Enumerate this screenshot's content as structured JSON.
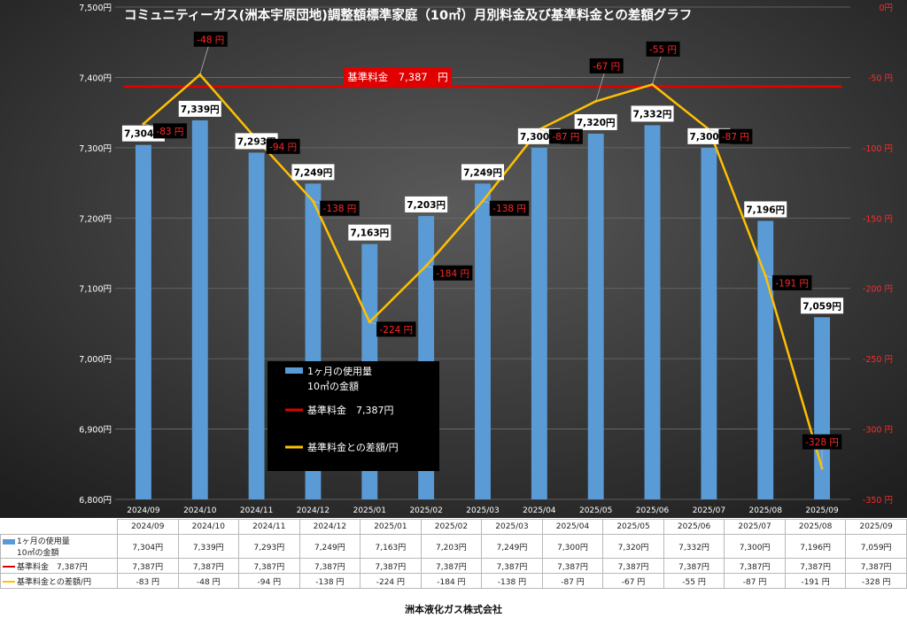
{
  "chart_data": {
    "type": "bar",
    "title": "コミュニティーガス(洲本宇原団地)調整額標準家庭（10㎥）月別料金及び基準料金との差額グラフ",
    "categories": [
      "2024/09",
      "2024/10",
      "2024/11",
      "2024/12",
      "2025/01",
      "2025/02",
      "2025/03",
      "2025/04",
      "2025/05",
      "2025/06",
      "2025/07",
      "2025/08",
      "2025/09"
    ],
    "series": [
      {
        "name": "1ヶ月の使用量 10㎥の金額",
        "type": "bar",
        "axis": "left",
        "color": "#5b9bd5",
        "values": [
          7304,
          7339,
          7293,
          7249,
          7163,
          7203,
          7249,
          7300,
          7320,
          7332,
          7300,
          7196,
          7059
        ],
        "labels": [
          "7,304円",
          "7,339円",
          "7,293円",
          "7,249円",
          "7,163円",
          "7,203円",
          "7,249円",
          "7,300円",
          "7,320円",
          "7,332円",
          "7,300円",
          "7,196円",
          "7,059円"
        ],
        "table_values": [
          "7,304円",
          "7,339円",
          "7,293円",
          "7,249円",
          "7,163円",
          "7,203円",
          "7,249円",
          "7,300円",
          "7,320円",
          "7,332円",
          "7,300円",
          "7,196円",
          "7,059円"
        ]
      },
      {
        "name": "基準料金 7,387円",
        "type": "line",
        "axis": "left",
        "color": "#e00000",
        "values": [
          7387,
          7387,
          7387,
          7387,
          7387,
          7387,
          7387,
          7387,
          7387,
          7387,
          7387,
          7387,
          7387
        ],
        "table_values": [
          "7,387円",
          "7,387円",
          "7,387円",
          "7,387円",
          "7,387円",
          "7,387円",
          "7,387円",
          "7,387円",
          "7,387円",
          "7,387円",
          "7,387円",
          "7,387円",
          "7,387円"
        ]
      },
      {
        "name": "基準料金との差額/円",
        "type": "line",
        "axis": "right",
        "color": "#ffc000",
        "values": [
          -83,
          -48,
          -94,
          -138,
          -224,
          -184,
          -138,
          -87,
          -67,
          -55,
          -87,
          -191,
          -328
        ],
        "labels": [
          "-83 円",
          "-48 円",
          "-94 円",
          "-138 円",
          "-224 円",
          "-184 円",
          "-138 円",
          "-87 円",
          "-67 円",
          "-55 円",
          "-87 円",
          "-191 円",
          "-328 円"
        ],
        "table_values": [
          "-83 円",
          "-48 円",
          "-94 円",
          "-138 円",
          "-224 円",
          "-184 円",
          "-138 円",
          "-87 円",
          "-67 円",
          "-55 円",
          "-87 円",
          "-191 円",
          "-328 円"
        ]
      }
    ],
    "y_left": {
      "min": 6800,
      "max": 7500,
      "ticks": [
        "6,800円",
        "6,900円",
        "7,000円",
        "7,100円",
        "7,200円",
        "7,300円",
        "7,400円",
        "7,500円"
      ]
    },
    "y_right": {
      "min": -350,
      "max": 0,
      "ticks": [
        "-350 円",
        "-300 円",
        "-250 円",
        "-200 円",
        "-150 円",
        "-100 円",
        "-50 円",
        "0円"
      ]
    },
    "baseline_label": "基準料金　7,387　円",
    "legend": {
      "placement": "center",
      "bar_line1": "1ヶ月の使用量",
      "bar_line2": "10㎥の金額",
      "base": "基準料金　7,387円",
      "diff": "基準料金との差額/円"
    },
    "table_labels": {
      "bar_line1": "1ヶ月の使用量",
      "bar_line2": "10㎥の金額",
      "base": "基準料金　7,387円",
      "diff": "基準料金との差額/円"
    },
    "grid": true
  },
  "footer": "洲本液化ガス株式会社"
}
